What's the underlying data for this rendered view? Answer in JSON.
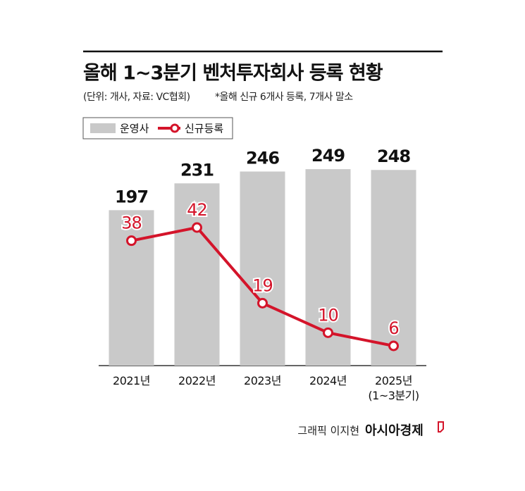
{
  "chart_data": {
    "type": "bar",
    "title": "올해 1~3분기 벤처투자회사 등록 현황",
    "subtitle": "(단위: 개사, 자료: VC협회)",
    "note": "*올해 신규 6개사 등록, 7개사 말소",
    "categories": [
      "2021년",
      "2022년",
      "2023년",
      "2024년",
      "2025년\n(1~3분기)"
    ],
    "series": [
      {
        "name": "운영사",
        "type": "bar",
        "color": "#c9c9c9",
        "values": [
          197,
          231,
          246,
          249,
          248
        ]
      },
      {
        "name": "신규등록",
        "type": "line",
        "color": "#d4142a",
        "axis": "y2",
        "values": [
          38,
          42,
          19,
          10,
          6
        ]
      }
    ],
    "ylim": [
      0,
      250
    ],
    "y2lim": [
      0,
      60
    ],
    "credit": "그래픽 이지현",
    "source": "아시아경제"
  }
}
